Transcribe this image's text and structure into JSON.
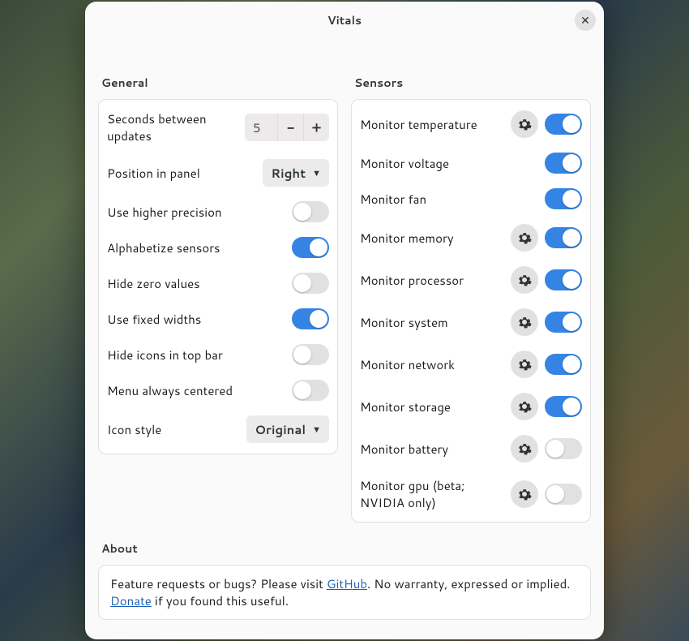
{
  "title": "Vitals",
  "general": {
    "title": "General",
    "seconds_label": "Seconds between updates",
    "seconds_value": "5",
    "position_label": "Position in panel",
    "position_value": "Right",
    "iconstyle_label": "Icon style",
    "iconstyle_value": "Original",
    "toggles": [
      {
        "label": "Use higher precision",
        "on": false
      },
      {
        "label": "Alphabetize sensors",
        "on": true
      },
      {
        "label": "Hide zero values",
        "on": false
      },
      {
        "label": "Use fixed widths",
        "on": true
      },
      {
        "label": "Hide icons in top bar",
        "on": false
      },
      {
        "label": "Menu always centered",
        "on": false
      }
    ]
  },
  "sensors": {
    "title": "Sensors",
    "items": [
      {
        "label": "Monitor temperature",
        "gear": true,
        "on": true
      },
      {
        "label": "Monitor voltage",
        "gear": false,
        "on": true
      },
      {
        "label": "Monitor fan",
        "gear": false,
        "on": true
      },
      {
        "label": "Monitor memory",
        "gear": true,
        "on": true
      },
      {
        "label": "Monitor processor",
        "gear": true,
        "on": true
      },
      {
        "label": "Monitor system",
        "gear": true,
        "on": true
      },
      {
        "label": "Monitor network",
        "gear": true,
        "on": true
      },
      {
        "label": "Monitor storage",
        "gear": true,
        "on": true
      },
      {
        "label": "Monitor battery",
        "gear": true,
        "on": false
      },
      {
        "label": "Monitor gpu (beta; NVIDIA only)",
        "gear": true,
        "on": false
      }
    ]
  },
  "about": {
    "title": "About",
    "pre": "Feature requests or bugs? Please visit ",
    "link1": "GitHub",
    "mid": ". No warranty, expressed or implied. ",
    "link2": "Donate",
    "post": " if you found this useful."
  },
  "colors": {
    "accent": "#3584e4",
    "toggle_off": "#e1e1e1",
    "link": "#1a5fb4",
    "dialog_bg": "#fafafa",
    "panel_border": "#e0e0e0",
    "control_bg": "#eceaea"
  }
}
